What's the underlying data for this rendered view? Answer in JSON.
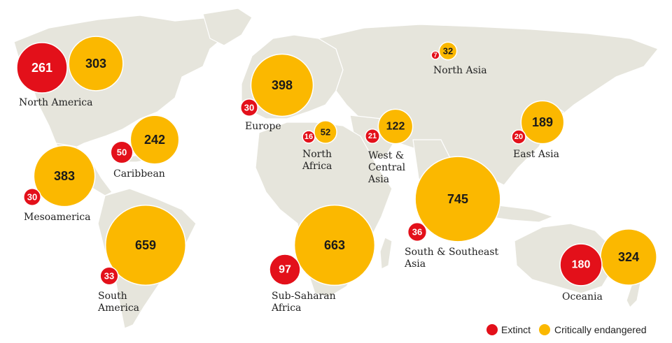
{
  "colors": {
    "extinct": "#e3101a",
    "critically_endangered": "#fbb800",
    "land": "#e6e5dc"
  },
  "legend": {
    "extinct_label": "Extinct",
    "critically_endangered_label": "Critically endangered"
  },
  "regions": [
    {
      "id": "north-america",
      "label_lines": [
        "North America"
      ],
      "extinct": 261,
      "critically_endangered": 303
    },
    {
      "id": "caribbean",
      "label_lines": [
        "Caribbean"
      ],
      "extinct": 50,
      "critically_endangered": 242
    },
    {
      "id": "mesoamerica",
      "label_lines": [
        "Mesoamerica"
      ],
      "extinct": 30,
      "critically_endangered": 383
    },
    {
      "id": "south-america",
      "label_lines": [
        "South",
        "America"
      ],
      "extinct": 33,
      "critically_endangered": 659
    },
    {
      "id": "europe",
      "label_lines": [
        "Europe"
      ],
      "extinct": 30,
      "critically_endangered": 398
    },
    {
      "id": "north-africa",
      "label_lines": [
        "North",
        "Africa"
      ],
      "extinct": 16,
      "critically_endangered": 52
    },
    {
      "id": "sub-saharan-africa",
      "label_lines": [
        "Sub-Saharan",
        "Africa"
      ],
      "extinct": 97,
      "critically_endangered": 663
    },
    {
      "id": "west-central-asia",
      "label_lines": [
        "West &",
        "Central",
        "Asia"
      ],
      "extinct": 21,
      "critically_endangered": 122
    },
    {
      "id": "north-asia",
      "label_lines": [
        "North Asia"
      ],
      "extinct": 7,
      "critically_endangered": 32
    },
    {
      "id": "east-asia",
      "label_lines": [
        "East Asia"
      ],
      "extinct": 20,
      "critically_endangered": 189
    },
    {
      "id": "south-southeast-asia",
      "label_lines": [
        "South & Southeast",
        "Asia"
      ],
      "extinct": 36,
      "critically_endangered": 745
    },
    {
      "id": "oceania",
      "label_lines": [
        "Oceania"
      ],
      "extinct": 180,
      "critically_endangered": 324
    }
  ]
}
